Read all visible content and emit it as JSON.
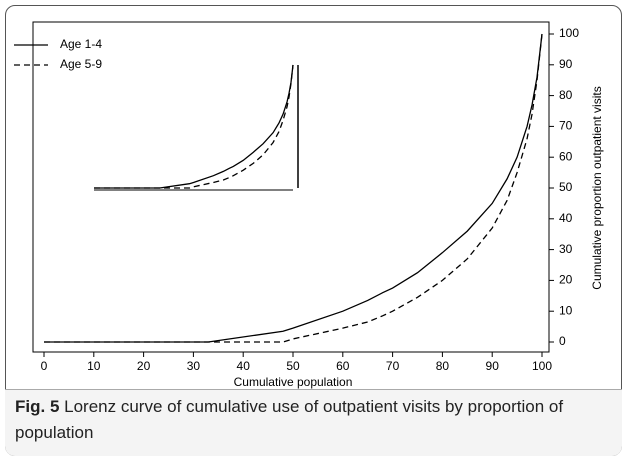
{
  "chart_data": {
    "type": "line",
    "x_label": "Cumulative population",
    "y_label": "Cumulative proportion outpatient visits",
    "x": [
      0,
      33,
      48,
      50,
      60,
      65,
      68,
      70,
      75,
      80,
      85,
      90,
      93,
      95,
      97,
      98,
      99,
      100
    ],
    "series": [
      {
        "name": "Age 1-4",
        "color": "#000000",
        "dash": "solid",
        "values": [
          0,
          0,
          3.5,
          4.5,
          10,
          13.5,
          16,
          17.5,
          22.5,
          29,
          36,
          45,
          53,
          60,
          70,
          77,
          86,
          100
        ]
      },
      {
        "name": "Age 5-9",
        "color": "#000000",
        "dash": "dashed",
        "values": [
          0,
          0,
          0,
          1,
          4.5,
          6.5,
          8.5,
          10,
          14.5,
          20,
          27,
          37,
          46,
          55,
          66,
          74,
          85,
          100
        ]
      }
    ],
    "xlim": [
      0,
      100
    ],
    "xticks": [
      0,
      10,
      20,
      30,
      40,
      50,
      60,
      70,
      80,
      90,
      100
    ],
    "ylim": [
      0,
      100
    ],
    "yticks": [
      0,
      10,
      20,
      30,
      40,
      50,
      60,
      70,
      80,
      90,
      100
    ],
    "y_axis_side": "right",
    "legend": "upper left",
    "grid": false
  },
  "caption": {
    "label": "Fig. 5",
    "text": "Lorenz curve of cumulative use of outpatient visits by proportion of population"
  }
}
